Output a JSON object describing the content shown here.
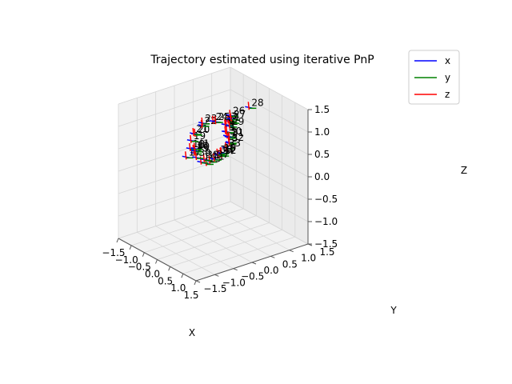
{
  "chart_data": {
    "type": "3d-trajectory",
    "title": "Trajectory estimated using iterative PnP",
    "xlabel": "X",
    "ylabel": "Y",
    "zlabel": "Z",
    "xlim": [
      -1.5,
      1.5
    ],
    "ylim": [
      -1.5,
      1.5
    ],
    "zlim": [
      -1.5,
      1.5
    ],
    "xticks": [
      "−1.5",
      "−1.0",
      "−0.5",
      "0.0",
      "0.5",
      "1.0",
      "1.5"
    ],
    "yticks": [
      "−1.5",
      "−1.0",
      "−0.5",
      "0.0",
      "0.5",
      "1.0",
      "1.5"
    ],
    "zticks": [
      "−1.5",
      "−1.0",
      "−0.5",
      "0.0",
      "0.5",
      "1.0",
      "1.5"
    ],
    "grid": true,
    "legend_position": "top-right",
    "legend": [
      {
        "label": "x",
        "color": "#0000ff"
      },
      {
        "label": "y",
        "color": "#008000"
      },
      {
        "label": "z",
        "color": "#ff0000"
      }
    ],
    "poses": [
      {
        "label": "1",
        "x": -0.02,
        "y": 0.52,
        "z": 1.0
      },
      {
        "label": "2",
        "x": 0.04,
        "y": 0.42,
        "z": 1.07
      },
      {
        "label": "3",
        "x": 0.12,
        "y": 0.32,
        "z": 1.13
      },
      {
        "label": "4",
        "x": 0.2,
        "y": 0.22,
        "z": 1.1
      },
      {
        "label": "5",
        "x": 0.32,
        "y": 0.15,
        "z": 1.0
      },
      {
        "label": "6",
        "x": -0.22,
        "y": 0.48,
        "z": 0.9
      },
      {
        "label": "7",
        "x": 0.48,
        "y": 0.08,
        "z": 0.95
      },
      {
        "label": "8",
        "x": 0.62,
        "y": 0.0,
        "z": 0.88
      },
      {
        "label": "9",
        "x": 0.44,
        "y": 0.03,
        "z": 1.07
      },
      {
        "label": "10",
        "x": 0.73,
        "y": -0.28,
        "z": 0.78
      },
      {
        "label": "11",
        "x": 0.42,
        "y": -0.38,
        "z": 0.52
      },
      {
        "label": "12",
        "x": 0.88,
        "y": -0.38,
        "z": 0.8
      },
      {
        "label": "13",
        "x": 0.43,
        "y": -0.48,
        "z": 0.5
      },
      {
        "label": "14",
        "x": 0.33,
        "y": -0.55,
        "z": 0.52
      },
      {
        "label": "15",
        "x": 0.0,
        "y": -0.5,
        "z": 0.6
      },
      {
        "label": "16",
        "x": -0.1,
        "y": -0.45,
        "z": 0.62
      },
      {
        "label": "17",
        "x": -0.25,
        "y": -0.55,
        "z": 0.45
      },
      {
        "label": "18",
        "x": -0.38,
        "y": -0.35,
        "z": 0.54
      },
      {
        "label": "19",
        "x": -0.45,
        "y": -0.28,
        "z": 0.68
      },
      {
        "label": "20",
        "x": -0.55,
        "y": -0.1,
        "z": 0.74
      },
      {
        "label": "21",
        "x": -0.68,
        "y": -0.05,
        "z": 0.7
      },
      {
        "label": "22",
        "x": -0.72,
        "y": 0.2,
        "z": 0.8
      },
      {
        "label": "23",
        "x": -0.7,
        "y": 0.2,
        "z": 0.86
      },
      {
        "label": "24",
        "x": -0.5,
        "y": 0.35,
        "z": 0.92
      },
      {
        "label": "25",
        "x": -0.45,
        "y": 0.38,
        "z": 0.92
      },
      {
        "label": "26",
        "x": -0.2,
        "y": 0.6,
        "z": 1.08
      },
      {
        "label": "27",
        "x": 0.05,
        "y": 0.45,
        "z": 1.12
      },
      {
        "label": "28",
        "x": 0.55,
        "y": 0.58,
        "z": 1.5
      },
      {
        "label": "29",
        "x": 0.35,
        "y": 0.2,
        "z": 1.12
      },
      {
        "label": "30",
        "x": 0.47,
        "y": 0.05,
        "z": 0.98
      },
      {
        "label": "31",
        "x": 0.6,
        "y": 0.02,
        "z": 1.0
      },
      {
        "label": "32",
        "x": 0.7,
        "y": -0.05,
        "z": 0.94
      },
      {
        "label": "33",
        "x": 0.72,
        "y": -0.15,
        "z": 0.85
      },
      {
        "label": "34",
        "x": 0.7,
        "y": -0.32,
        "z": 0.72
      },
      {
        "label": "35",
        "x": 0.66,
        "y": -0.25,
        "z": 0.74
      },
      {
        "label": "36",
        "x": 0.58,
        "y": -0.28,
        "z": 0.7
      },
      {
        "label": "37",
        "x": 0.55,
        "y": -0.35,
        "z": 0.6
      },
      {
        "label": "38",
        "x": 0.35,
        "y": -0.48,
        "z": 0.56
      },
      {
        "label": "39",
        "x": 0.1,
        "y": -0.52,
        "z": 0.54
      },
      {
        "label": "40",
        "x": -0.05,
        "y": -0.45,
        "z": 0.62
      },
      {
        "label": "41",
        "x": -0.2,
        "y": -0.35,
        "z": 0.6
      }
    ]
  }
}
